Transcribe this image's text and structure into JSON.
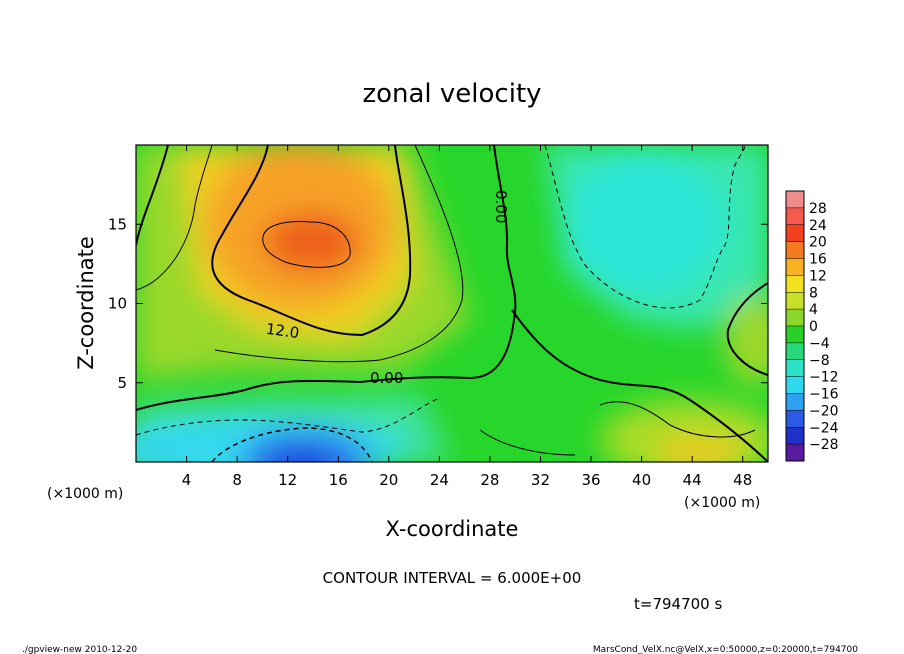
{
  "chart_data": {
    "type": "heatmap",
    "title": "zonal velocity",
    "xlabel": "X-coordinate",
    "ylabel": "Z-coordinate",
    "x_unit_left": "(×1000 m)",
    "x_unit_right": "(×1000 m)",
    "xlim": [
      0,
      50
    ],
    "ylim": [
      0,
      20
    ],
    "x_ticks": [
      4,
      8,
      12,
      16,
      20,
      24,
      28,
      32,
      36,
      40,
      44,
      48
    ],
    "y_ticks": [
      5,
      10,
      15
    ],
    "colorbar": {
      "levels": [
        -28,
        -24,
        -20,
        -16,
        -12,
        -8,
        -4,
        0,
        4,
        8,
        12,
        16,
        20,
        24,
        28
      ],
      "labels": [
        "28",
        "24",
        "20",
        "16",
        "12",
        "8",
        "4",
        "0",
        "−4",
        "−8",
        "−12",
        "−16",
        "−20",
        "−24",
        "−28"
      ]
    },
    "contour_labels": [
      "12.0",
      "0.00",
      "0.00"
    ],
    "contour_interval_text": "CONTOUR INTERVAL = 6.000E+00",
    "time_text": "t=794700 s",
    "grid": false,
    "features": [
      {
        "kind": "max",
        "x": 13.5,
        "z": 13.8,
        "value": 19
      },
      {
        "kind": "min",
        "x": 14.5,
        "z": 0.8,
        "value": -22
      },
      {
        "kind": "min",
        "x": 40,
        "z": 15.5,
        "value": -10
      },
      {
        "kind": "max",
        "x": 44,
        "z": 1.5,
        "value": 11
      }
    ]
  },
  "footer": {
    "left": "./gpview-new  2010-12-20",
    "right": "MarsCond_VelX.nc@VelX,x=0:50000,z=0:20000,t=794700"
  }
}
